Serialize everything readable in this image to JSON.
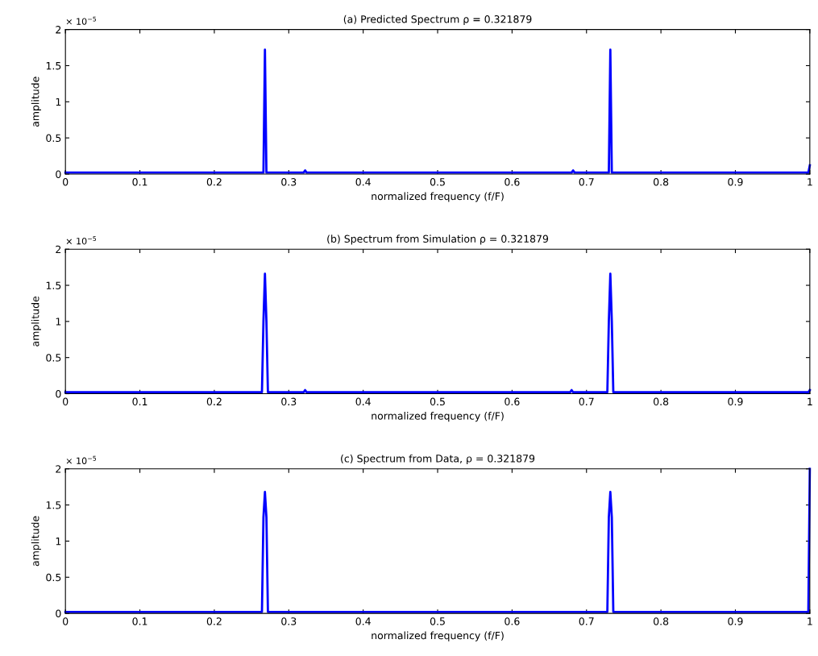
{
  "chart_data": [
    {
      "type": "line",
      "title": "(a) Predicted Spectrum ρ = 0.321879",
      "xlabel": "normalized frequency (f/F)",
      "ylabel": "amplitude",
      "annotations": [
        "× 10$^{−5}$"
      ],
      "xlim": [
        0,
        1
      ],
      "ylim": [
        0,
        2
      ],
      "xticks": [
        0,
        0.1,
        0.2,
        0.3,
        0.4,
        0.5,
        0.6,
        0.7,
        0.8,
        0.9,
        1
      ],
      "yticks": [
        0,
        0.5,
        1,
        1.5,
        2
      ],
      "grid": false,
      "series": [
        {
          "color": "#0000ff",
          "x": [
            0,
            0.1,
            0.2,
            0.266,
            0.268,
            0.27,
            0.32,
            0.322,
            0.324,
            0.5,
            0.68,
            0.682,
            0.684,
            0.73,
            0.732,
            0.734,
            0.9,
            0.998,
            1
          ],
          "values": [
            0.02,
            0.02,
            0.02,
            0.02,
            1.72,
            0.02,
            0.02,
            0.05,
            0.02,
            0.02,
            0.02,
            0.05,
            0.02,
            0.02,
            1.72,
            0.02,
            0.02,
            0.02,
            0.12
          ]
        }
      ]
    },
    {
      "type": "line",
      "title": "(b) Spectrum from Simulation ρ = 0.321879",
      "xlabel": "normalized frequency (f/F)",
      "ylabel": "amplitude",
      "annotations": [
        "× 10$^{−5}$"
      ],
      "xlim": [
        0,
        1
      ],
      "ylim": [
        0,
        2
      ],
      "xticks": [
        0,
        0.1,
        0.2,
        0.3,
        0.4,
        0.5,
        0.6,
        0.7,
        0.8,
        0.9,
        1
      ],
      "yticks": [
        0,
        0.5,
        1,
        1.5,
        2
      ],
      "grid": false,
      "series": [
        {
          "color": "#0000ff",
          "x": [
            0,
            0.2,
            0.264,
            0.266,
            0.268,
            0.27,
            0.272,
            0.32,
            0.322,
            0.324,
            0.5,
            0.678,
            0.68,
            0.682,
            0.728,
            0.73,
            0.732,
            0.734,
            0.736,
            0.9,
            0.998,
            1
          ],
          "values": [
            0.02,
            0.02,
            0.02,
            1.0,
            1.66,
            1.0,
            0.02,
            0.02,
            0.05,
            0.02,
            0.02,
            0.02,
            0.05,
            0.02,
            0.02,
            1.0,
            1.66,
            1.0,
            0.02,
            0.02,
            0.02,
            0.05
          ]
        }
      ]
    },
    {
      "type": "line",
      "title": "(c) Spectrum from Data, ρ = 0.321879",
      "xlabel": "normalized frequency (f/F)",
      "ylabel": "amplitude",
      "annotations": [
        "× 10$^{−5}$"
      ],
      "xlim": [
        0,
        1
      ],
      "ylim": [
        0,
        2
      ],
      "xticks": [
        0,
        0.1,
        0.2,
        0.3,
        0.4,
        0.5,
        0.6,
        0.7,
        0.8,
        0.9,
        1
      ],
      "yticks": [
        0,
        0.5,
        1,
        1.5,
        2
      ],
      "grid": false,
      "series": [
        {
          "color": "#0000ff",
          "x": [
            0,
            0.2,
            0.264,
            0.266,
            0.268,
            0.27,
            0.272,
            0.5,
            0.728,
            0.73,
            0.732,
            0.734,
            0.736,
            0.9,
            0.998,
            1
          ],
          "values": [
            0.02,
            0.02,
            0.02,
            1.33,
            1.68,
            1.33,
            0.02,
            0.02,
            0.02,
            1.33,
            1.68,
            1.33,
            0.02,
            0.02,
            0.02,
            2
          ]
        }
      ]
    }
  ]
}
